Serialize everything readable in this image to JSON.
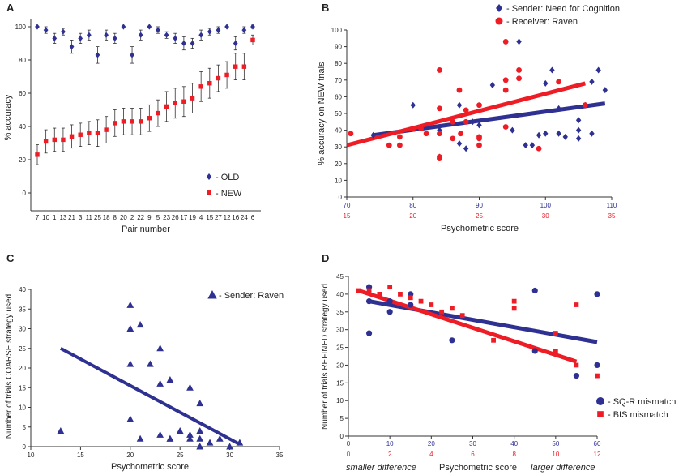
{
  "colors": {
    "blue": "#2e3192",
    "red": "#ee1c25",
    "axis": "#333333",
    "errbar": "#333333"
  },
  "chart_data": [
    {
      "panel": "A",
      "type": "scatter",
      "xlabel": "Pair number",
      "ylabel": "% accuracy",
      "ylim": [
        0,
        100
      ],
      "yticks": [
        0,
        20,
        40,
        60,
        80,
        100
      ],
      "categories": [
        "7",
        "10",
        "1",
        "13",
        "21",
        "3",
        "11",
        "25",
        "18",
        "8",
        "20",
        "2",
        "22",
        "9",
        "5",
        "23",
        "26",
        "17",
        "19",
        "4",
        "15",
        "27",
        "12",
        "16",
        "24",
        "6"
      ],
      "series": [
        {
          "name": "- OLD",
          "marker": "diamond",
          "color": "#2e3192",
          "values": [
            100,
            98,
            93,
            97,
            88,
            93,
            95,
            83,
            95,
            93,
            100,
            83,
            95,
            100,
            98,
            95,
            93,
            90,
            90,
            95,
            97,
            98,
            100,
            90,
            98,
            100
          ],
          "errors": [
            0,
            2,
            3,
            2,
            4,
            3,
            3,
            5,
            3,
            3,
            0,
            5,
            3,
            0,
            2,
            2,
            3,
            4,
            3,
            3,
            2,
            2,
            0,
            4,
            2,
            1
          ]
        },
        {
          "name": "- NEW",
          "marker": "square",
          "color": "#ee1c25",
          "values": [
            23,
            31,
            32,
            32,
            34,
            35,
            36,
            36,
            38,
            42,
            43,
            43,
            43,
            45,
            48,
            52,
            54,
            55,
            57,
            64,
            66,
            69,
            71,
            76,
            76,
            92
          ],
          "errors": [
            6,
            7,
            7,
            7,
            7,
            7,
            7,
            8,
            8,
            8,
            8,
            8,
            8,
            8,
            8,
            9,
            9,
            9,
            9,
            9,
            9,
            8,
            8,
            8,
            8,
            3
          ]
        }
      ]
    },
    {
      "panel": "B",
      "type": "scatter",
      "xlabel": "Psychometric score",
      "ylabel": "% accuracy on NEW trials",
      "ylim": [
        0,
        100
      ],
      "yticks": [
        0,
        10,
        20,
        30,
        40,
        50,
        60,
        70,
        80,
        90,
        100
      ],
      "x_top_range": [
        70,
        110
      ],
      "x_top_ticks": [
        70,
        80,
        90,
        100,
        110
      ],
      "x_bottom_range": [
        15,
        35
      ],
      "x_bottom_ticks": [
        15,
        20,
        25,
        30,
        35
      ],
      "series": [
        {
          "name": "- Sender: Need for Cognition",
          "marker": "diamond",
          "color": "#2e3192",
          "axis": "top",
          "points": [
            [
              74,
              37
            ],
            [
              80,
              55
            ],
            [
              84,
              40
            ],
            [
              84,
              24
            ],
            [
              87,
              55
            ],
            [
              87,
              32
            ],
            [
              88,
              29
            ],
            [
              89,
              45
            ],
            [
              90,
              43
            ],
            [
              92,
              67
            ],
            [
              95,
              40
            ],
            [
              96,
              93
            ],
            [
              96,
              71
            ],
            [
              97,
              31
            ],
            [
              98,
              31
            ],
            [
              99,
              37
            ],
            [
              100,
              38
            ],
            [
              100,
              68
            ],
            [
              101,
              76
            ],
            [
              102,
              53
            ],
            [
              102,
              38
            ],
            [
              103,
              36
            ],
            [
              105,
              35
            ],
            [
              105,
              40
            ],
            [
              105,
              46
            ],
            [
              106,
              55
            ],
            [
              107,
              69
            ],
            [
              107,
              38
            ],
            [
              108,
              76
            ],
            [
              109,
              64
            ]
          ],
          "fit": [
            [
              74,
              37
            ],
            [
              109,
              56
            ]
          ]
        },
        {
          "name": "- Receiver: Raven",
          "marker": "circle",
          "color": "#ee1c25",
          "axis": "bottom",
          "points": [
            [
              15.3,
              38
            ],
            [
              18.2,
              31
            ],
            [
              19,
              31
            ],
            [
              19,
              36
            ],
            [
              20,
              41
            ],
            [
              20.6,
              41
            ],
            [
              21,
              38
            ],
            [
              22,
              24
            ],
            [
              22,
              23
            ],
            [
              22,
              76
            ],
            [
              22,
              53
            ],
            [
              22,
              38
            ],
            [
              23,
              45
            ],
            [
              23,
              35
            ],
            [
              23.5,
              64
            ],
            [
              23.6,
              38
            ],
            [
              24,
              52
            ],
            [
              24,
              45
            ],
            [
              25,
              36
            ],
            [
              25,
              35
            ],
            [
              25,
              31
            ],
            [
              25,
              55
            ],
            [
              27,
              70
            ],
            [
              27,
              42
            ],
            [
              27,
              93
            ],
            [
              27,
              64
            ],
            [
              28,
              76
            ],
            [
              28,
              71
            ],
            [
              29.5,
              29
            ],
            [
              31,
              69
            ],
            [
              33,
              55
            ]
          ],
          "fit": [
            [
              15,
              31
            ],
            [
              33,
              68
            ]
          ]
        }
      ]
    },
    {
      "panel": "C",
      "type": "scatter",
      "xlabel": "Psychometric score",
      "ylabel": "Number of trials COARSE strategy used",
      "xlim": [
        10,
        35
      ],
      "xticks": [
        10,
        15,
        20,
        25,
        30,
        35
      ],
      "ylim": [
        0,
        40
      ],
      "yticks": [
        0,
        5,
        10,
        15,
        20,
        25,
        30,
        35,
        40
      ],
      "series": [
        {
          "name": "- Sender: Raven",
          "marker": "triangle",
          "color": "#2e3192",
          "points": [
            [
              13,
              4
            ],
            [
              20,
              36
            ],
            [
              20,
              30
            ],
            [
              20,
              21
            ],
            [
              20,
              7
            ],
            [
              21,
              31
            ],
            [
              21,
              2
            ],
            [
              22,
              21
            ],
            [
              23,
              25
            ],
            [
              23,
              16
            ],
            [
              23,
              3
            ],
            [
              24,
              17
            ],
            [
              24,
              2
            ],
            [
              24,
              2
            ],
            [
              25,
              4
            ],
            [
              26,
              15
            ],
            [
              26,
              3
            ],
            [
              26,
              2
            ],
            [
              27,
              11
            ],
            [
              27,
              4
            ],
            [
              27,
              2
            ],
            [
              27,
              0
            ],
            [
              27,
              0
            ],
            [
              28,
              1
            ],
            [
              29,
              2
            ],
            [
              30,
              0
            ],
            [
              31,
              1
            ]
          ],
          "fit": [
            [
              13,
              25
            ],
            [
              31,
              0.6
            ]
          ]
        }
      ]
    },
    {
      "panel": "D",
      "type": "scatter",
      "xlabel": "Psychometric score",
      "xlabel_left": "smaller difference",
      "xlabel_right": "larger difference",
      "ylabel": "Number of trials REFINED strategy used",
      "ylim": [
        0,
        45
      ],
      "yticks": [
        0,
        5,
        10,
        15,
        20,
        25,
        30,
        35,
        40,
        45
      ],
      "x_top_range": [
        0,
        60
      ],
      "x_top_ticks": [
        0,
        10,
        20,
        30,
        40,
        50,
        60
      ],
      "x_bottom_range": [
        0,
        12
      ],
      "x_bottom_ticks": [
        0,
        2,
        4,
        6,
        8,
        10,
        12
      ],
      "series": [
        {
          "name": "- SQ-R mismatch",
          "marker": "circle",
          "color": "#2e3192",
          "axis": "top",
          "points": [
            [
              5,
              42
            ],
            [
              5,
              38
            ],
            [
              5,
              29
            ],
            [
              10,
              38
            ],
            [
              10,
              35
            ],
            [
              15,
              40
            ],
            [
              15,
              37
            ],
            [
              25,
              27
            ],
            [
              45,
              41
            ],
            [
              45,
              24
            ],
            [
              55,
              17
            ],
            [
              60,
              40
            ],
            [
              60,
              20
            ]
          ],
          "fit": [
            [
              5,
              38
            ],
            [
              60,
              26.5
            ]
          ]
        },
        {
          "name": "- BIS mismatch",
          "marker": "square",
          "color": "#ee1c25",
          "axis": "bottom",
          "points": [
            [
              0.5,
              41
            ],
            [
              1,
              41
            ],
            [
              1.5,
              40
            ],
            [
              2,
              42
            ],
            [
              2.5,
              40
            ],
            [
              3,
              39
            ],
            [
              3.5,
              38
            ],
            [
              4,
              37
            ],
            [
              4.5,
              35
            ],
            [
              5,
              36
            ],
            [
              5.5,
              34
            ],
            [
              7,
              27
            ],
            [
              8,
              38
            ],
            [
              8,
              36
            ],
            [
              10,
              24
            ],
            [
              10,
              29
            ],
            [
              11,
              37
            ],
            [
              11,
              20
            ],
            [
              12,
              17
            ]
          ],
          "fit": [
            [
              0.5,
              41
            ],
            [
              11,
              21
            ]
          ]
        }
      ]
    }
  ]
}
